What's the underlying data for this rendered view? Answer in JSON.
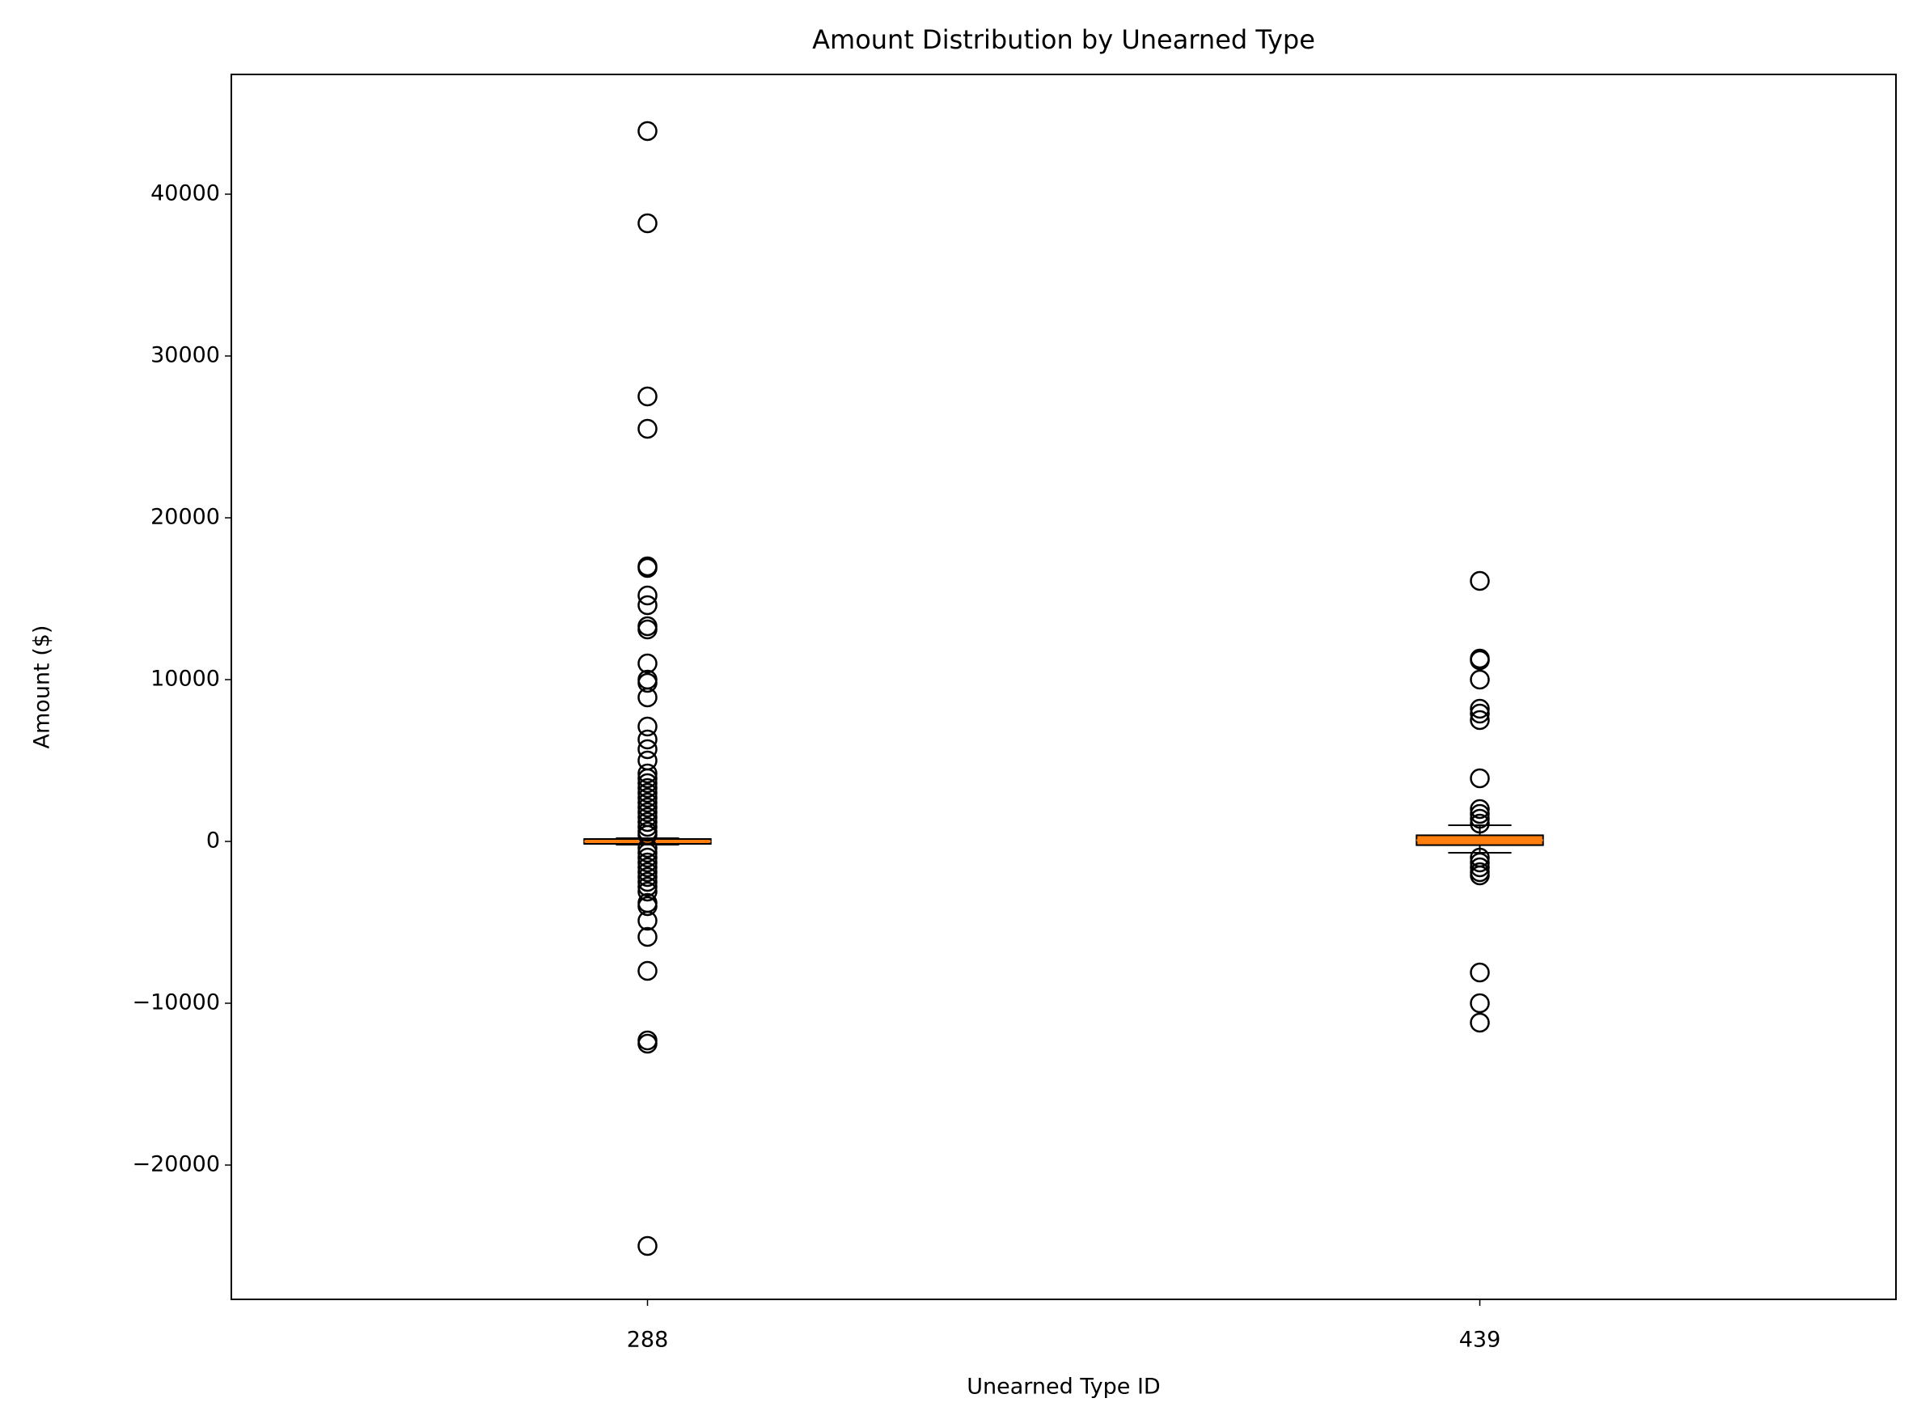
{
  "chart_data": {
    "type": "box",
    "title": "Amount Distribution by Unearned Type",
    "x_label": "Unearned Type ID",
    "y_label": "Amount ($)",
    "categories": [
      "288",
      "439"
    ],
    "box_color": "#000000",
    "median_color": "#ff7f0e",
    "boxes": [
      {
        "whisker_low": -200,
        "q1": -150,
        "median": 0,
        "q3": 150,
        "whisker_high": 200,
        "outliers": [
          43900,
          38200,
          27500,
          25500,
          17000,
          16900,
          15200,
          14600,
          13300,
          13100,
          11000,
          10000,
          9800,
          8900,
          7100,
          6300,
          5700,
          5000,
          4200,
          3900,
          3600,
          3300,
          3000,
          2700,
          2400,
          2100,
          1800,
          1500,
          1200,
          900,
          600,
          400,
          -400,
          -700,
          -1000,
          -1300,
          -1600,
          -1900,
          -2200,
          -2500,
          -2800,
          -3100,
          -3800,
          -4000,
          -4900,
          -5900,
          -8000,
          -12300,
          -12500,
          -25000
        ]
      },
      {
        "whisker_low": -700,
        "q1": -230,
        "median": 75,
        "q3": 380,
        "whisker_high": 1000,
        "outliers": [
          16100,
          11300,
          11200,
          10000,
          8200,
          7900,
          7500,
          3900,
          2000,
          1700,
          1400,
          1100,
          -1000,
          -1300,
          -1600,
          -1900,
          -2100,
          -8100,
          -10000,
          -11200
        ]
      }
    ],
    "ylim": [
      -28300,
      47400
    ],
    "yticks": [
      {
        "value": -20000,
        "label": "−20000"
      },
      {
        "value": -10000,
        "label": "−10000"
      },
      0,
      10000,
      20000,
      30000,
      40000
    ]
  }
}
